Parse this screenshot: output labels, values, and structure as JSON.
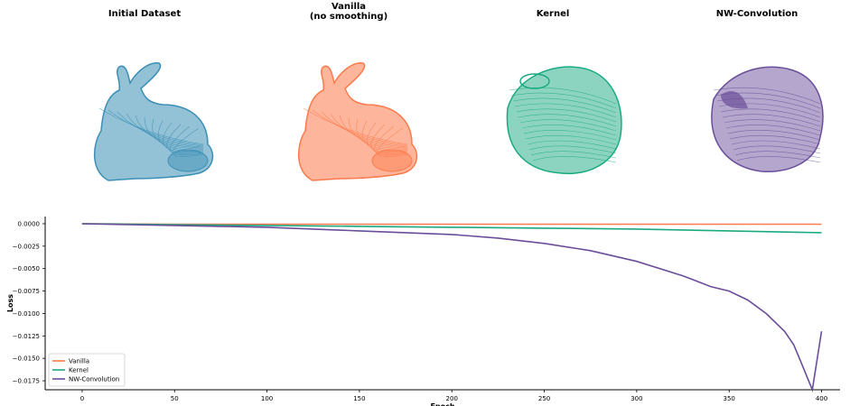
{
  "panels": [
    {
      "title": "Initial Dataset",
      "color": "#3b8fb5",
      "shape": "bunny"
    },
    {
      "title": "Vanilla\n(no smoothing)",
      "color": "#fc7a4b",
      "shape": "bunny"
    },
    {
      "title": "Kernel",
      "color": "#1aaa82",
      "shape": "blob"
    },
    {
      "title": "NW-Convolution",
      "color": "#6a4e9a",
      "shape": "blob"
    }
  ],
  "chart_data": {
    "type": "line",
    "title": "",
    "xlabel": "Epoch",
    "ylabel": "Loss",
    "xlim": [
      -20,
      410
    ],
    "ylim": [
      -0.0185,
      0.0008
    ],
    "xticks": [
      0,
      50,
      100,
      150,
      200,
      250,
      300,
      350,
      400
    ],
    "yticks": [
      0.0,
      -0.0025,
      -0.005,
      -0.0075,
      -0.01,
      -0.0125,
      -0.015,
      -0.0175
    ],
    "ytick_labels": [
      "0.0000",
      "−0.0025",
      "−0.0050",
      "−0.0075",
      "−0.0100",
      "−0.0125",
      "−0.0150",
      "−0.0175"
    ],
    "legend_position": "bottom-left",
    "grid": false,
    "series": [
      {
        "name": "Vanilla",
        "color": "#fc7a4b",
        "x": [
          0,
          50,
          100,
          150,
          200,
          250,
          300,
          350,
          400
        ],
        "y": [
          0.0,
          -5e-05,
          -5e-05,
          -5e-05,
          -5e-05,
          -5e-05,
          -5e-05,
          -5e-05,
          -5e-05
        ]
      },
      {
        "name": "Kernel",
        "color": "#1aaa82",
        "x": [
          0,
          50,
          100,
          150,
          200,
          250,
          300,
          350,
          400
        ],
        "y": [
          0.0,
          -0.0001,
          -0.0002,
          -0.0003,
          -0.0004,
          -0.0005,
          -0.0006,
          -0.0008,
          -0.001
        ]
      },
      {
        "name": "NW-Convolution",
        "color": "#6a4e9a",
        "x": [
          0,
          25,
          50,
          75,
          100,
          125,
          150,
          175,
          200,
          225,
          250,
          275,
          300,
          325,
          340,
          350,
          360,
          370,
          380,
          385,
          390,
          395,
          400
        ],
        "y": [
          0.0,
          -0.0001,
          -0.0002,
          -0.0003,
          -0.0004,
          -0.0006,
          -0.0008,
          -0.001,
          -0.0012,
          -0.0016,
          -0.0022,
          -0.003,
          -0.0042,
          -0.0058,
          -0.007,
          -0.0075,
          -0.0085,
          -0.01,
          -0.012,
          -0.0135,
          -0.016,
          -0.0185,
          -0.012
        ]
      }
    ]
  }
}
